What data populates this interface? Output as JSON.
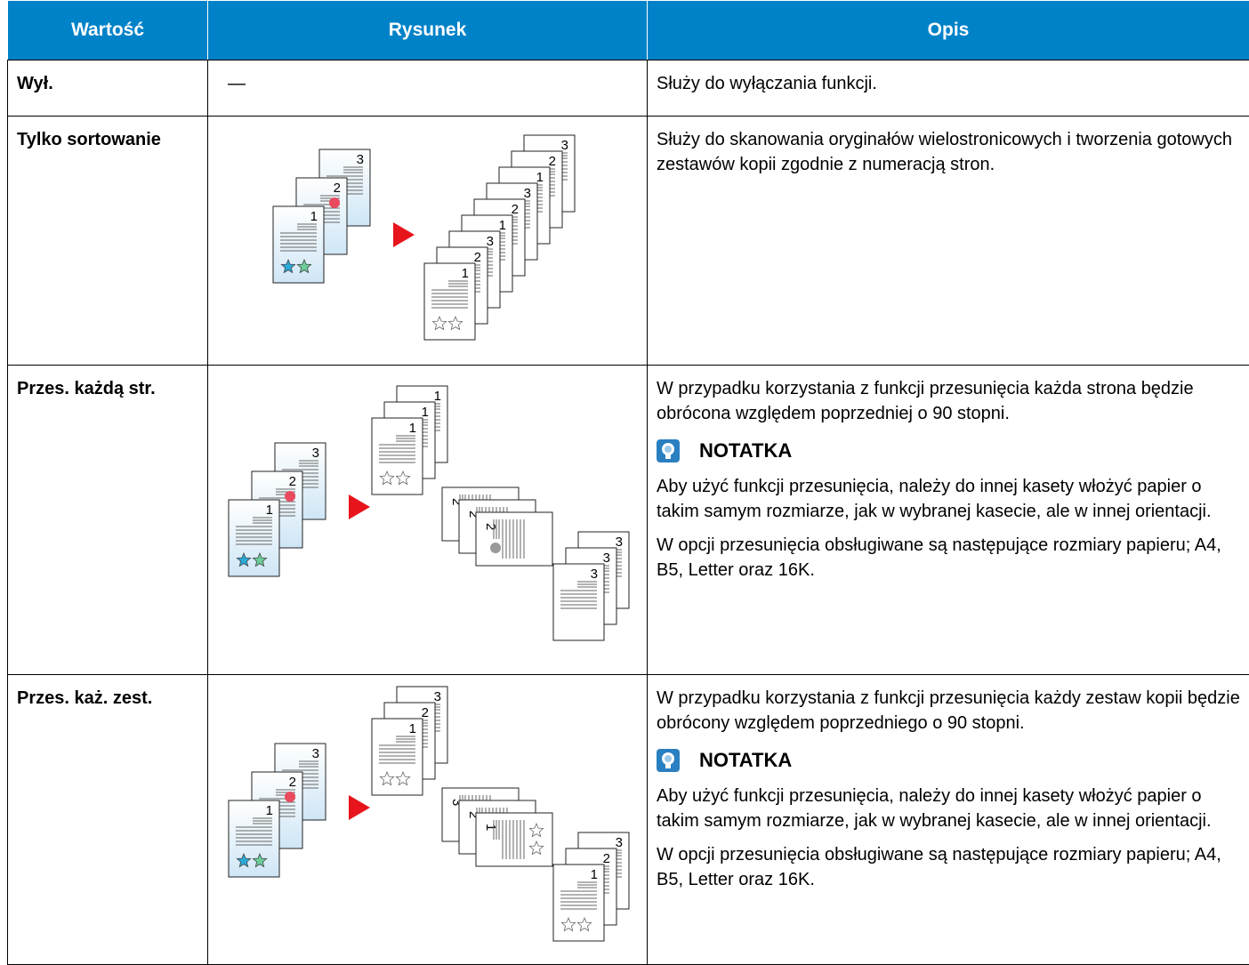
{
  "table": {
    "header": [
      "Wartość",
      "Rysunek",
      "Opis"
    ],
    "rows": [
      {
        "value": "Wył.",
        "figure": "—",
        "description": [
          "Służy do wyłączania funkcji."
        ]
      },
      {
        "value": "Tylko sortowanie",
        "figure": {
          "originals": [
            "1",
            "2",
            "3"
          ],
          "copies": [
            [
              "1",
              "2",
              "3",
              "1",
              "2",
              "3",
              "1",
              "2",
              "3"
            ]
          ]
        },
        "description": [
          "Służy do skanowania oryginałów wielostronicowych i tworzenia gotowych zestawów kopii zgodnie z numeracją stron."
        ]
      },
      {
        "value": "Przes. każdą str.",
        "figure": {
          "originals": [
            "1",
            "2",
            "3"
          ],
          "copies": [
            [
              "1",
              "1",
              "1"
            ],
            [
              "2",
              "2",
              "2"
            ],
            [
              "3",
              "3",
              "3"
            ]
          ]
        },
        "description": [
          "W przypadku korzystania z funkcji przesunięcia każda strona będzie obrócona względem poprzedniej o 90 stopni."
        ],
        "note": {
          "title": "NOTATKA",
          "paragraphs": [
            "Aby użyć funkcji przesunięcia, należy do innej kasety włożyć papier o takim samym rozmiarze, jak w wybranej kasecie, ale w innej orientacji.",
            "W opcji przesunięcia obsługiwane są następujące rozmiary papieru; A4, B5, Letter oraz 16K."
          ]
        }
      },
      {
        "value": "Przes. każ. zest.",
        "figure": {
          "originals": [
            "1",
            "2",
            "3"
          ],
          "copies": [
            [
              "1",
              "2",
              "3"
            ],
            [
              "1",
              "2",
              "3"
            ],
            [
              "1",
              "2",
              "3"
            ]
          ]
        },
        "description": [
          "W przypadku korzystania z funkcji przesunięcia każdy zestaw kopii będzie obrócony względem poprzedniego o 90 stopni."
        ],
        "note": {
          "title": "NOTATKA",
          "paragraphs": [
            "Aby użyć funkcji przesunięcia, należy do innej kasety włożyć papier o takim samym rozmiarze, jak w wybranej kasecie, ale w innej orientacji.",
            "W opcji przesunięcia obsługiwane są następujące rozmiary papieru; A4, B5, Letter oraz 16K."
          ]
        }
      }
    ]
  }
}
